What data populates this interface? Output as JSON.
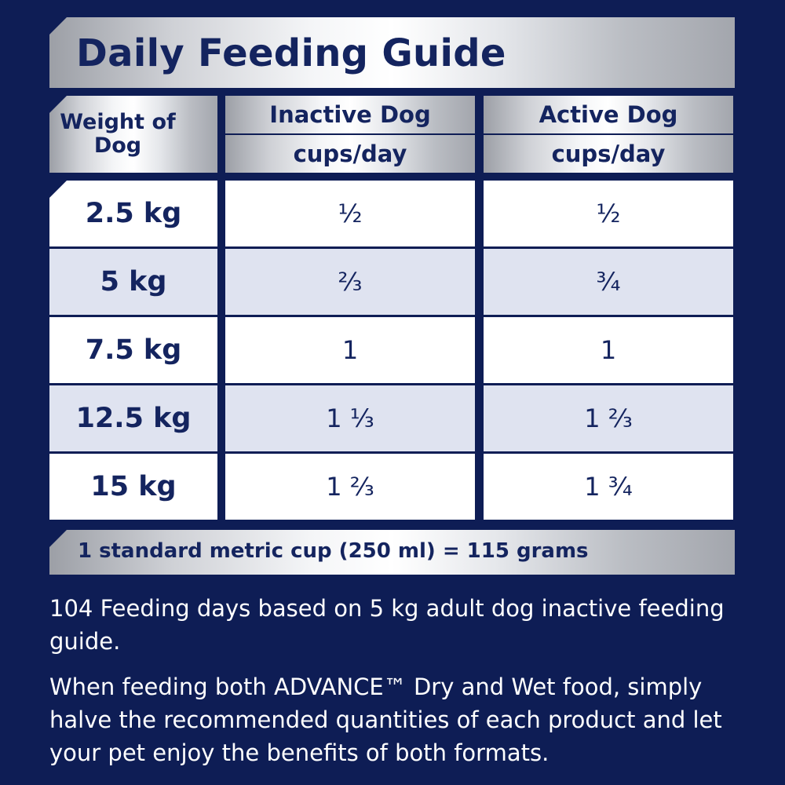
{
  "title": "Daily Feeding Guide",
  "header": {
    "weight_label": "Weight of Dog",
    "inactive_label": "Inactive Dog",
    "inactive_unit": "cups/day",
    "active_label": "Active Dog",
    "active_unit": "cups/day"
  },
  "rows": [
    {
      "weight": "2.5 kg",
      "inactive": "½",
      "active": "½"
    },
    {
      "weight": "5 kg",
      "inactive": "²⁄₃",
      "active": "¾"
    },
    {
      "weight": "7.5 kg",
      "inactive": "1",
      "active": "1"
    },
    {
      "weight": "12.5 kg",
      "inactive": "1 ⅓",
      "active": "1 ²⁄₃"
    },
    {
      "weight": "15 kg",
      "inactive": "1 ²⁄₃",
      "active": "1 ¾"
    }
  ],
  "cup_note": "1 standard metric cup (250 ml) = 115 grams",
  "note_days": "104 Feeding days based on 5 kg adult dog inactive feeding guide.",
  "note_mixed": "When feeding both ADVANCE™ Dry and Wet food, simply halve the recommended quantities of each product and let your pet enjoy the benefits of both formats.",
  "colors": {
    "background": "#0e1d55",
    "text_navy": "#14245f",
    "row_alt": "#dfe3f0"
  }
}
